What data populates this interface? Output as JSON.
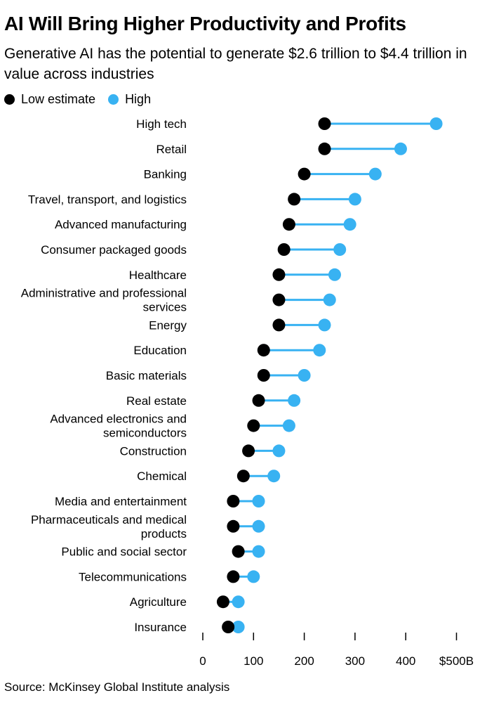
{
  "chart_data": {
    "type": "dumbbell",
    "title": "AI Will Bring Higher Productivity and Profits",
    "subtitle": "Generative AI has the potential to generate $2.6 trillion to $4.4 trillion in value across industries",
    "series": [
      {
        "name": "Low estimate",
        "color": "#000000"
      },
      {
        "name": "High",
        "color": "#38b2f2"
      }
    ],
    "categories": [
      [
        "High tech"
      ],
      [
        "Retail"
      ],
      [
        "Banking"
      ],
      [
        "Travel, transport, and logistics"
      ],
      [
        "Advanced manufacturing"
      ],
      [
        "Consumer packaged goods"
      ],
      [
        "Healthcare"
      ],
      [
        "Administrative and professional",
        "services"
      ],
      [
        "Energy"
      ],
      [
        "Education"
      ],
      [
        "Basic materials"
      ],
      [
        "Real estate"
      ],
      [
        "Advanced electronics and",
        "semiconductors"
      ],
      [
        "Construction"
      ],
      [
        "Chemical"
      ],
      [
        "Media and entertainment"
      ],
      [
        "Pharmaceuticals and medical",
        "products"
      ],
      [
        "Public and social sector"
      ],
      [
        "Telecommunications"
      ],
      [
        "Agriculture"
      ],
      [
        "Insurance"
      ]
    ],
    "low": [
      240,
      240,
      200,
      180,
      170,
      160,
      150,
      150,
      150,
      120,
      120,
      110,
      100,
      90,
      80,
      60,
      60,
      70,
      60,
      40,
      50
    ],
    "high": [
      460,
      390,
      340,
      300,
      290,
      270,
      260,
      250,
      240,
      230,
      200,
      180,
      170,
      150,
      140,
      110,
      110,
      110,
      100,
      70,
      70
    ],
    "xlim": [
      0,
      500
    ],
    "xticks": [
      0,
      100,
      200,
      300,
      400,
      500
    ],
    "xtick_labels": [
      "0",
      "100",
      "200",
      "300",
      "400",
      "$500B"
    ],
    "line_color": "#38b2f2",
    "grid": false,
    "legend_position": "top-left"
  },
  "source": "Source: McKinsey Global Institute analysis"
}
